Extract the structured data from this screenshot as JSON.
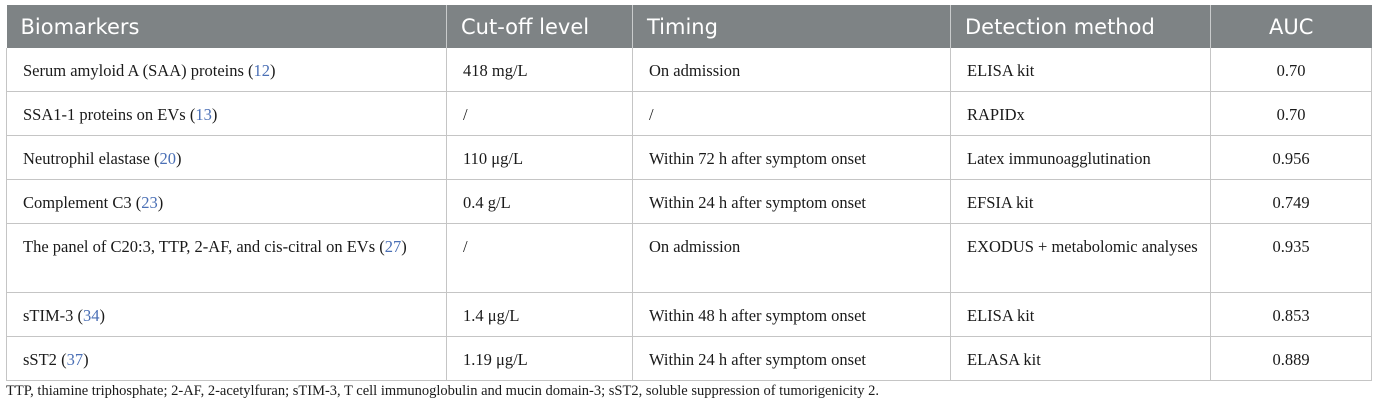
{
  "table": {
    "headers": [
      "Biomarkers",
      "Cut-off level",
      "Timing",
      "Detection method",
      "AUC"
    ],
    "rows": [
      {
        "biomarker": "Serum amyloid A (SAA) proteins",
        "ref": "12",
        "cutoff": "418 mg/L",
        "timing": "On admission",
        "method": "ELISA kit",
        "auc": "0.70"
      },
      {
        "biomarker": "SSA1-1 proteins on EVs",
        "ref": "13",
        "cutoff": "/",
        "timing": "/",
        "method": "RAPIDx",
        "auc": "0.70"
      },
      {
        "biomarker": "Neutrophil elastase",
        "ref": "20",
        "cutoff": "110 μg/L",
        "timing": "Within 72 h after symptom onset",
        "method": "Latex immunoagglutination",
        "auc": "0.956"
      },
      {
        "biomarker": "Complement C3",
        "ref": "23",
        "cutoff": "0.4 g/L",
        "timing": "Within 24 h after symptom onset",
        "method": "EFSIA kit",
        "auc": "0.749"
      },
      {
        "biomarker": "The panel of C20:3, TTP, 2-AF, and cis-citral on EVs",
        "ref": "27",
        "cutoff": "/",
        "timing": "On admission",
        "method": "EXODUS + metabolomic analyses",
        "auc": "0.935"
      },
      {
        "biomarker": "sTIM-3",
        "ref": "34",
        "cutoff": "1.4 μg/L",
        "timing": "Within 48 h after symptom onset",
        "method": "ELISA kit",
        "auc": "0.853"
      },
      {
        "biomarker": "sST2",
        "ref": "37",
        "cutoff": "1.19 μg/L",
        "timing": "Within 24 h after symptom onset",
        "method": "ELASA kit",
        "auc": "0.889"
      }
    ]
  },
  "footnote": "TTP, thiamine triphosphate; 2-AF, 2-acetylfuran; sTIM-3, T cell immunoglobulin and mucin domain-3; sST2, soluble suppression of tumorigenicity 2."
}
